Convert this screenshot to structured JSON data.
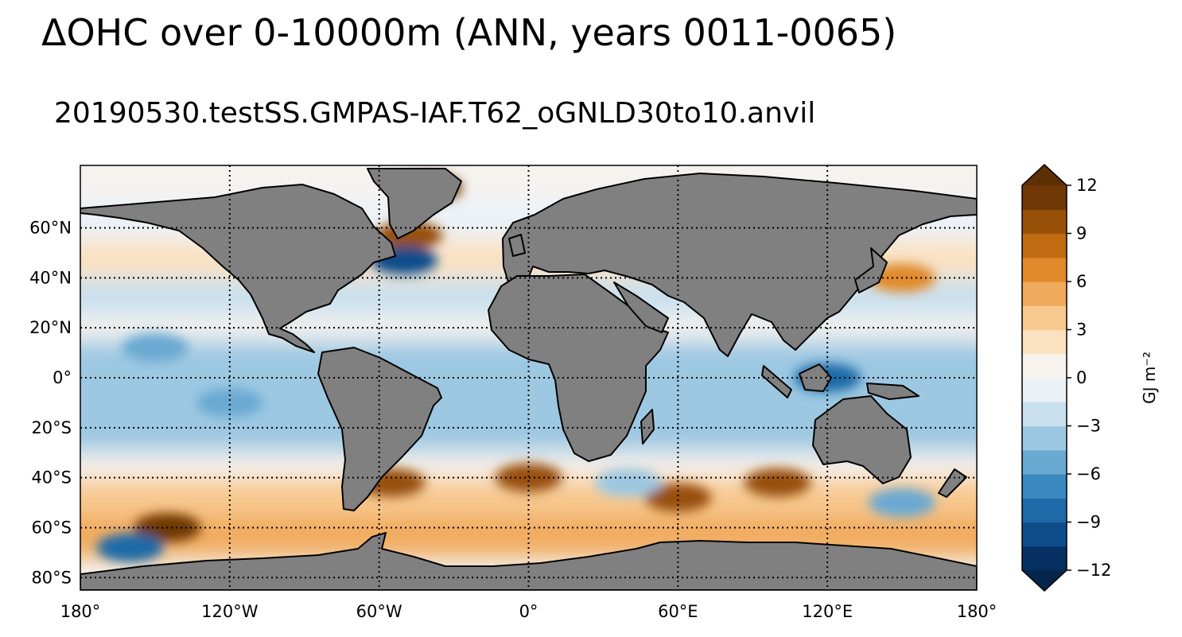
{
  "title": "ΔOHC over 0-10000m (ANN, years 0011-0065)",
  "subtitle": "20190530.testSS.GMPAS-IAF.T62_oGNLD30to10.anvil",
  "map": {
    "projection": "equirectangular",
    "lon_range": [
      -180,
      180
    ],
    "lat_range": [
      -85,
      85
    ],
    "land_color": "#808080",
    "coastline_color": "#000000",
    "gridlines": "dotted",
    "lon_ticks": [
      {
        "lon": -180,
        "label": "180°"
      },
      {
        "lon": -120,
        "label": "120°W"
      },
      {
        "lon": -60,
        "label": "60°W"
      },
      {
        "lon": 0,
        "label": "0°"
      },
      {
        "lon": 60,
        "label": "60°E"
      },
      {
        "lon": 120,
        "label": "120°E"
      },
      {
        "lon": 180,
        "label": "180°"
      }
    ],
    "lat_ticks": [
      {
        "lat": 60,
        "label": "60°N"
      },
      {
        "lat": 40,
        "label": "40°N"
      },
      {
        "lat": 20,
        "label": "20°N"
      },
      {
        "lat": 0,
        "label": "0°"
      },
      {
        "lat": -20,
        "label": "20°S"
      },
      {
        "lat": -40,
        "label": "40°S"
      },
      {
        "lat": -60,
        "label": "60°S"
      },
      {
        "lat": -80,
        "label": "80°S"
      }
    ]
  },
  "colorbar": {
    "label": "GJ m⁻²",
    "min": -12,
    "max": 12,
    "extend": "both",
    "ticks": [
      "12",
      "9",
      "6",
      "3",
      "0",
      "−3",
      "−6",
      "−9",
      "−12"
    ],
    "tick_values": [
      12,
      9,
      6,
      3,
      0,
      -3,
      -6,
      -9,
      -12
    ],
    "colors": [
      "#053061",
      "#0e4d8a",
      "#1f6aa8",
      "#3a88c0",
      "#6aa9d2",
      "#9cc8e2",
      "#c9e0ee",
      "#ebf2f7",
      "#f6f3ee",
      "#fbe1c0",
      "#f8c98f",
      "#f1ab5e",
      "#e08a2c",
      "#c06a12",
      "#985009",
      "#6e3705"
    ],
    "under_color": "#04264c",
    "over_color": "#5e2e04"
  },
  "chart_data": {
    "type": "heatmap",
    "title": "ΔOHC over 0-10000m (ANN, years 0011-0065)",
    "subtitle": "20190530.testSS.GMPAS-IAF.T62_oGNLD30to10.anvil",
    "variable": "ΔOHC",
    "units": "GJ m⁻²",
    "xlim": [
      -180,
      180
    ],
    "ylim": [
      -85,
      85
    ],
    "clim": [
      -12,
      12
    ],
    "features": [
      {
        "lon": -40,
        "lat": 76,
        "value": 11
      },
      {
        "lon": -48,
        "lat": 57,
        "value": 10
      },
      {
        "lon": -50,
        "lat": 47,
        "value": -10
      },
      {
        "lon": -150,
        "lat": 12,
        "value": -5
      },
      {
        "lon": -120,
        "lat": -10,
        "value": -5
      },
      {
        "lon": 120,
        "lat": 0,
        "value": -8
      },
      {
        "lon": 150,
        "lat": 40,
        "value": 7
      },
      {
        "lon": -145,
        "lat": -60,
        "value": 11
      },
      {
        "lon": -160,
        "lat": -68,
        "value": -9
      },
      {
        "lon": -55,
        "lat": -42,
        "value": 10
      },
      {
        "lon": 0,
        "lat": -40,
        "value": 9
      },
      {
        "lon": 60,
        "lat": -48,
        "value": 9
      },
      {
        "lon": 100,
        "lat": -42,
        "value": 9
      },
      {
        "lon": 40,
        "lat": -42,
        "value": -4
      },
      {
        "lon": 150,
        "lat": -50,
        "value": -5
      }
    ]
  }
}
